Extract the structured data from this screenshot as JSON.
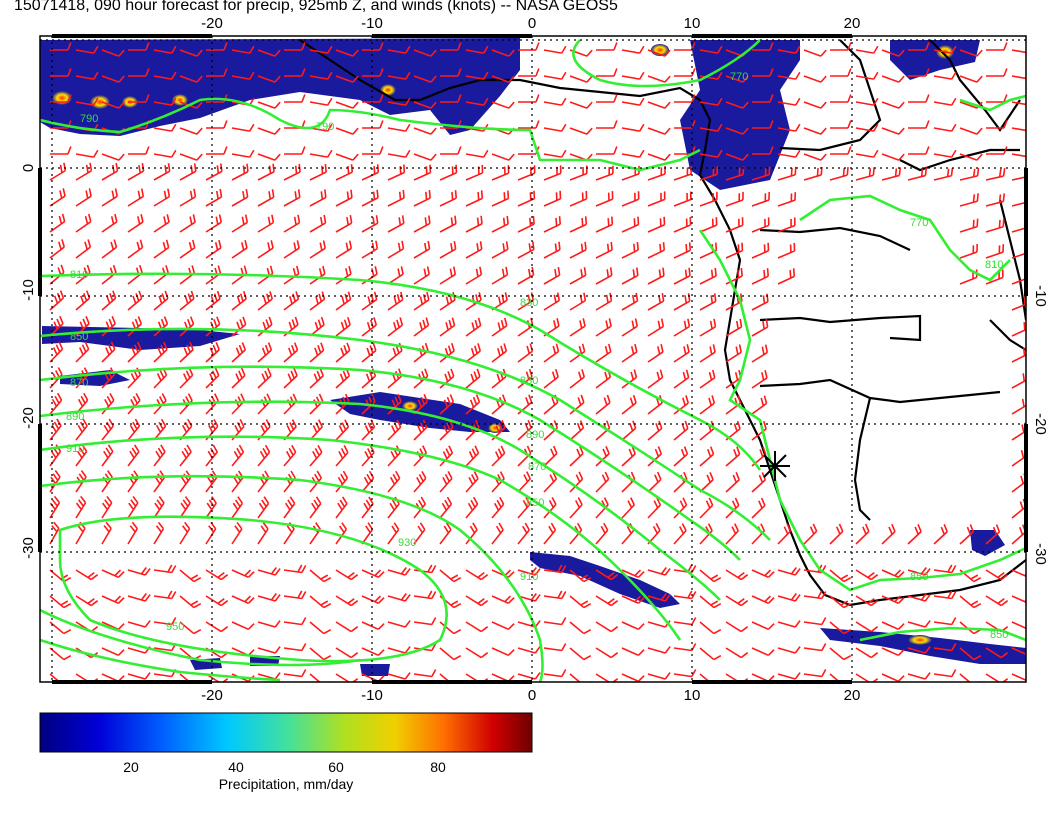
{
  "title": "15071418, 090 hour forecast for precip, 925mb Z, and winds (knots) -- NASA GEOS5",
  "map": {
    "lon_ticks_top": [
      "-20",
      "-10",
      "0",
      "10",
      "20"
    ],
    "lon_ticks_bottom": [
      "-20",
      "-10",
      "0",
      "10",
      "20"
    ],
    "lat_ticks_left": [
      "0",
      "-10",
      "-20",
      "-30"
    ],
    "lat_ticks_right": [
      "-10",
      "-20",
      "-30"
    ],
    "contour_labels": [
      "790",
      "790",
      "770",
      "830",
      "810",
      "850",
      "870",
      "890",
      "910",
      "930",
      "950",
      "910",
      "890",
      "870",
      "850",
      "830",
      "810",
      "770",
      "850",
      "850"
    ],
    "colors": {
      "contour": "#33ee33",
      "wind_barb": "#ff1a1a",
      "coastline": "#000000",
      "precip_low": "#1a1a9e"
    },
    "marker": "star-marker"
  },
  "colorbar": {
    "ticks": [
      "20",
      "40",
      "60",
      "80"
    ],
    "label": "Precipitation, mm/day"
  }
}
